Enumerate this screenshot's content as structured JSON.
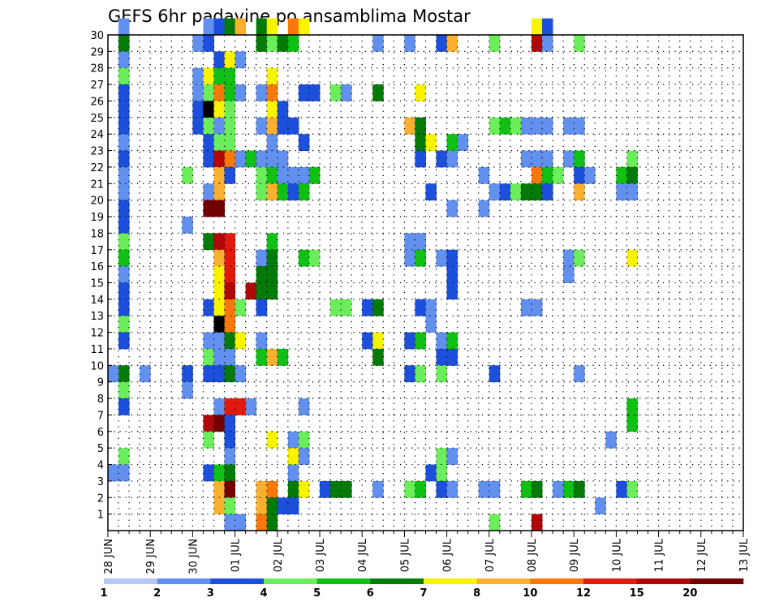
{
  "chart_data": {
    "type": "heatmap",
    "title": "GEFS 6hr padavine po ansamblima Mostar",
    "xlabel": "",
    "ylabel": "",
    "x_tick_labels": [
      "28 JUN",
      "29 JUN",
      "30 JUN",
      "01 JUL",
      "02 JUL",
      "03 JUL",
      "04 JUL",
      "05 JUL",
      "06 JUL",
      "07 JUL",
      "08 JUL",
      "09 JUL",
      "10 JUL",
      "11 JUL",
      "12 JUL",
      "13 JUL"
    ],
    "y_tick_labels": [
      "1",
      "2",
      "3",
      "4",
      "5",
      "6",
      "7",
      "8",
      "9",
      "10",
      "11",
      "12",
      "13",
      "14",
      "15",
      "16",
      "17",
      "18",
      "19",
      "20",
      "21",
      "22",
      "23",
      "24",
      "25",
      "26",
      "27",
      "28",
      "29",
      "30"
    ],
    "xlim": [
      0,
      60
    ],
    "ylim": [
      0,
      30
    ],
    "steps_per_day": 4,
    "grid": true,
    "colorbar": {
      "tick_labels": [
        "1",
        "2",
        "3",
        "4",
        "5",
        "6",
        "7",
        "8",
        "10",
        "12",
        "15",
        "20"
      ],
      "colors": [
        "#b4c8f8",
        "#6290ee",
        "#1c4fdc",
        "#6cee5c",
        "#10c014",
        "#047a08",
        "#f8f400",
        "#fbb030",
        "#f8780c",
        "#e01a0c",
        "#b00808",
        "#720000"
      ]
    },
    "cells": [
      [
        1,
        30,
        1
      ],
      [
        1,
        29,
        5
      ],
      [
        1,
        28,
        1
      ],
      [
        1,
        27,
        3
      ],
      [
        1,
        26,
        2
      ],
      [
        1,
        25,
        2
      ],
      [
        1,
        24,
        2
      ],
      [
        1,
        23,
        1
      ],
      [
        1,
        22,
        2
      ],
      [
        1,
        21,
        1
      ],
      [
        1,
        20,
        1
      ],
      [
        1,
        19,
        2
      ],
      [
        1,
        18,
        2
      ],
      [
        1,
        17,
        3
      ],
      [
        1,
        16,
        4
      ],
      [
        1,
        15,
        1
      ],
      [
        1,
        14,
        2
      ],
      [
        1,
        13,
        2
      ],
      [
        1,
        12,
        3
      ],
      [
        1,
        11,
        2
      ],
      [
        1,
        9,
        5
      ],
      [
        1,
        8,
        3
      ],
      [
        1,
        7,
        2
      ],
      [
        1,
        4,
        3
      ],
      [
        1,
        3,
        1
      ],
      [
        0,
        9,
        1
      ],
      [
        0,
        3,
        1
      ],
      [
        3,
        9,
        1
      ],
      [
        7,
        21,
        3
      ],
      [
        7,
        18,
        1
      ],
      [
        7,
        9,
        2
      ],
      [
        7,
        8,
        1
      ],
      [
        8,
        29,
        1
      ],
      [
        8,
        27,
        1
      ],
      [
        8,
        26,
        1
      ],
      [
        8,
        25,
        2
      ],
      [
        8,
        24,
        2
      ],
      [
        9,
        30,
        1
      ],
      [
        9,
        29,
        2
      ],
      [
        9,
        27,
        6
      ],
      [
        9,
        26,
        3
      ],
      [
        9,
        25,
        12
      ],
      [
        9,
        24,
        3
      ],
      [
        9,
        23,
        2
      ],
      [
        9,
        22,
        2
      ],
      [
        9,
        20,
        1
      ],
      [
        9,
        19,
        11
      ],
      [
        9,
        17,
        5
      ],
      [
        9,
        13,
        2
      ],
      [
        9,
        11,
        1
      ],
      [
        9,
        10,
        3
      ],
      [
        9,
        9,
        2
      ],
      [
        9,
        6,
        10
      ],
      [
        9,
        5,
        3
      ],
      [
        9,
        3,
        2
      ],
      [
        10,
        30,
        2
      ],
      [
        10,
        28,
        2
      ],
      [
        10,
        27,
        4
      ],
      [
        10,
        26,
        8
      ],
      [
        10,
        25,
        6
      ],
      [
        10,
        24,
        1
      ],
      [
        10,
        23,
        3
      ],
      [
        10,
        22,
        10
      ],
      [
        10,
        21,
        7
      ],
      [
        10,
        20,
        7
      ],
      [
        10,
        19,
        11
      ],
      [
        10,
        17,
        10
      ],
      [
        10,
        16,
        7
      ],
      [
        10,
        15,
        6
      ],
      [
        10,
        14,
        6
      ],
      [
        10,
        13,
        6
      ],
      [
        10,
        12,
        12
      ],
      [
        10,
        11,
        1
      ],
      [
        10,
        10,
        1
      ],
      [
        10,
        9,
        2
      ],
      [
        10,
        7,
        1
      ],
      [
        10,
        6,
        11
      ],
      [
        10,
        3,
        4
      ],
      [
        10,
        2,
        7
      ],
      [
        10,
        1,
        7
      ],
      [
        11,
        30,
        5
      ],
      [
        11,
        28,
        6
      ],
      [
        11,
        27,
        4
      ],
      [
        11,
        26,
        4
      ],
      [
        11,
        25,
        3
      ],
      [
        11,
        24,
        3
      ],
      [
        11,
        23,
        3
      ],
      [
        11,
        22,
        8
      ],
      [
        11,
        21,
        2
      ],
      [
        11,
        17,
        9
      ],
      [
        11,
        16,
        9
      ],
      [
        11,
        15,
        9
      ],
      [
        11,
        14,
        10
      ],
      [
        11,
        13,
        8
      ],
      [
        11,
        12,
        8
      ],
      [
        11,
        11,
        5
      ],
      [
        11,
        10,
        1
      ],
      [
        11,
        9,
        5
      ],
      [
        11,
        7,
        9
      ],
      [
        11,
        6,
        2
      ],
      [
        11,
        5,
        2
      ],
      [
        11,
        4,
        1
      ],
      [
        11,
        3,
        5
      ],
      [
        11,
        2,
        11
      ],
      [
        11,
        1,
        3
      ],
      [
        11,
        0,
        1
      ],
      [
        12,
        30,
        7
      ],
      [
        12,
        28,
        1
      ],
      [
        12,
        26,
        1
      ],
      [
        12,
        22,
        1
      ],
      [
        12,
        13,
        3
      ],
      [
        12,
        11,
        6
      ],
      [
        12,
        9,
        1
      ],
      [
        12,
        7,
        9
      ],
      [
        12,
        0,
        1
      ],
      [
        13,
        22,
        4
      ],
      [
        13,
        14,
        10
      ],
      [
        13,
        7,
        1
      ],
      [
        14,
        30,
        5
      ],
      [
        14,
        29,
        5
      ],
      [
        14,
        26,
        1
      ],
      [
        14,
        24,
        1
      ],
      [
        14,
        22,
        1
      ],
      [
        14,
        21,
        3
      ],
      [
        14,
        20,
        3
      ],
      [
        14,
        16,
        1
      ],
      [
        14,
        15,
        5
      ],
      [
        14,
        14,
        5
      ],
      [
        14,
        13,
        2
      ],
      [
        14,
        11,
        1
      ],
      [
        14,
        10,
        4
      ],
      [
        14,
        2,
        7
      ],
      [
        14,
        1,
        7
      ],
      [
        14,
        0,
        8
      ],
      [
        15,
        30,
        6
      ],
      [
        15,
        29,
        3
      ],
      [
        15,
        27,
        6
      ],
      [
        15,
        26,
        8
      ],
      [
        15,
        25,
        6
      ],
      [
        15,
        24,
        7
      ],
      [
        15,
        23,
        1
      ],
      [
        15,
        22,
        1
      ],
      [
        15,
        21,
        4
      ],
      [
        15,
        20,
        7
      ],
      [
        15,
        17,
        4
      ],
      [
        15,
        16,
        5
      ],
      [
        15,
        15,
        5
      ],
      [
        15,
        14,
        5
      ],
      [
        15,
        10,
        7
      ],
      [
        15,
        5,
        6
      ],
      [
        15,
        2,
        8
      ],
      [
        15,
        1,
        5
      ],
      [
        15,
        0,
        5
      ],
      [
        16,
        29,
        5
      ],
      [
        16,
        25,
        2
      ],
      [
        16,
        24,
        2
      ],
      [
        16,
        22,
        1
      ],
      [
        16,
        21,
        1
      ],
      [
        16,
        20,
        4
      ],
      [
        16,
        10,
        4
      ],
      [
        16,
        1,
        2
      ],
      [
        17,
        30,
        8
      ],
      [
        17,
        29,
        4
      ],
      [
        17,
        24,
        2
      ],
      [
        17,
        21,
        1
      ],
      [
        17,
        20,
        2
      ],
      [
        17,
        5,
        1
      ],
      [
        17,
        4,
        6
      ],
      [
        17,
        3,
        1
      ],
      [
        17,
        2,
        5
      ],
      [
        17,
        1,
        2
      ],
      [
        18,
        30,
        6
      ],
      [
        18,
        26,
        2
      ],
      [
        18,
        23,
        2
      ],
      [
        18,
        21,
        1
      ],
      [
        18,
        20,
        4
      ],
      [
        18,
        16,
        4
      ],
      [
        18,
        7,
        1
      ],
      [
        18,
        5,
        3
      ],
      [
        18,
        4,
        1
      ],
      [
        18,
        2,
        6
      ],
      [
        19,
        26,
        2
      ],
      [
        19,
        21,
        4
      ],
      [
        19,
        16,
        3
      ],
      [
        20,
        2,
        2
      ],
      [
        21,
        26,
        3
      ],
      [
        21,
        13,
        3
      ],
      [
        21,
        2,
        5
      ],
      [
        22,
        26,
        1
      ],
      [
        22,
        13,
        3
      ],
      [
        22,
        2,
        5
      ],
      [
        24,
        13,
        2
      ],
      [
        24,
        11,
        2
      ],
      [
        25,
        29,
        1
      ],
      [
        25,
        26,
        5
      ],
      [
        25,
        13,
        5
      ],
      [
        25,
        11,
        6
      ],
      [
        25,
        10,
        5
      ],
      [
        25,
        2,
        1
      ],
      [
        28,
        29,
        1
      ],
      [
        28,
        24,
        7
      ],
      [
        28,
        17,
        1
      ],
      [
        28,
        16,
        1
      ],
      [
        28,
        11,
        2
      ],
      [
        28,
        9,
        2
      ],
      [
        28,
        2,
        3
      ],
      [
        29,
        26,
        6
      ],
      [
        29,
        24,
        5
      ],
      [
        29,
        23,
        5
      ],
      [
        29,
        22,
        2
      ],
      [
        29,
        17,
        1
      ],
      [
        29,
        16,
        4
      ],
      [
        29,
        13,
        2
      ],
      [
        29,
        11,
        4
      ],
      [
        29,
        9,
        3
      ],
      [
        29,
        2,
        4
      ],
      [
        30,
        23,
        6
      ],
      [
        30,
        20,
        2
      ],
      [
        30,
        13,
        1
      ],
      [
        30,
        12,
        1
      ],
      [
        30,
        3,
        2
      ],
      [
        31,
        29,
        2
      ],
      [
        31,
        22,
        2
      ],
      [
        31,
        16,
        1
      ],
      [
        31,
        11,
        1
      ],
      [
        31,
        10,
        2
      ],
      [
        31,
        9,
        3
      ],
      [
        31,
        4,
        3
      ],
      [
        31,
        3,
        3
      ],
      [
        31,
        2,
        2
      ],
      [
        32,
        29,
        7
      ],
      [
        32,
        23,
        4
      ],
      [
        32,
        22,
        1
      ],
      [
        32,
        19,
        1
      ],
      [
        32,
        16,
        2
      ],
      [
        32,
        15,
        2
      ],
      [
        32,
        14,
        2
      ],
      [
        32,
        11,
        4
      ],
      [
        32,
        10,
        2
      ],
      [
        32,
        4,
        1
      ],
      [
        32,
        2,
        1
      ],
      [
        33,
        23,
        1
      ],
      [
        35,
        21,
        1
      ],
      [
        35,
        19,
        1
      ],
      [
        35,
        2,
        1
      ],
      [
        36,
        29,
        3
      ],
      [
        36,
        24,
        3
      ],
      [
        36,
        20,
        1
      ],
      [
        36,
        9,
        2
      ],
      [
        36,
        2,
        1
      ],
      [
        36,
        0,
        3
      ],
      [
        37,
        24,
        4
      ],
      [
        37,
        20,
        2
      ],
      [
        38,
        24,
        3
      ],
      [
        38,
        20,
        3
      ],
      [
        39,
        24,
        1
      ],
      [
        39,
        22,
        1
      ],
      [
        39,
        20,
        5
      ],
      [
        39,
        13,
        1
      ],
      [
        39,
        2,
        4
      ],
      [
        40,
        30,
        6
      ],
      [
        40,
        29,
        10
      ],
      [
        40,
        24,
        1
      ],
      [
        40,
        22,
        1
      ],
      [
        40,
        21,
        8
      ],
      [
        40,
        20,
        5
      ],
      [
        40,
        13,
        1
      ],
      [
        40,
        2,
        5
      ],
      [
        40,
        0,
        10
      ],
      [
        41,
        30,
        2
      ],
      [
        41,
        29,
        1
      ],
      [
        41,
        24,
        1
      ],
      [
        41,
        22,
        1
      ],
      [
        41,
        21,
        4
      ],
      [
        41,
        20,
        2
      ],
      [
        42,
        21,
        3
      ],
      [
        42,
        2,
        1
      ],
      [
        43,
        24,
        1
      ],
      [
        43,
        22,
        1
      ],
      [
        43,
        16,
        1
      ],
      [
        43,
        15,
        1
      ],
      [
        43,
        2,
        4
      ],
      [
        44,
        29,
        3
      ],
      [
        44,
        24,
        1
      ],
      [
        44,
        22,
        4
      ],
      [
        44,
        21,
        2
      ],
      [
        44,
        20,
        7
      ],
      [
        44,
        16,
        3
      ],
      [
        44,
        9,
        1
      ],
      [
        44,
        2,
        5
      ],
      [
        45,
        21,
        1
      ],
      [
        46,
        1,
        1
      ],
      [
        47,
        5,
        1
      ],
      [
        48,
        21,
        4
      ],
      [
        48,
        20,
        1
      ],
      [
        48,
        2,
        2
      ],
      [
        49,
        22,
        3
      ],
      [
        49,
        21,
        5
      ],
      [
        49,
        20,
        1
      ],
      [
        49,
        16,
        6
      ],
      [
        49,
        7,
        4
      ],
      [
        49,
        6,
        4
      ],
      [
        49,
        2,
        3
      ]
    ]
  }
}
